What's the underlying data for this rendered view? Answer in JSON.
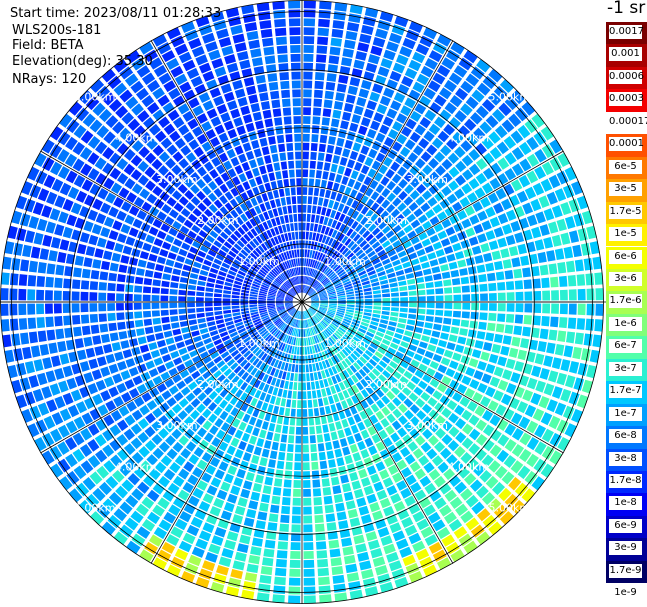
{
  "header": {
    "start_time": "Start time: 2023/08/11 01:28:33",
    "device": "WLS200s-181",
    "field": "Field: BETA",
    "elevation": "Elevation(deg): 35.30",
    "nrays": "NRays: 120"
  },
  "colorbar": {
    "unit": "-1 sr",
    "colors": [
      "#7a0000",
      "#a80000",
      "#cf0000",
      "#f40000",
      "#ffffff",
      "#ff5000",
      "#ff7800",
      "#ffa000",
      "#ffc800",
      "#fff000",
      "#f4ff00",
      "#d0ff2a",
      "#a8ff52",
      "#80ff7a",
      "#52ffaa",
      "#2af0d2",
      "#00c8ff",
      "#00a0ff",
      "#0078ff",
      "#0050ff",
      "#0028ff",
      "#0000f4",
      "#0000c8",
      "#000096",
      "#000064"
    ],
    "labels": [
      "0.0017",
      "0.001",
      "0.0006",
      "0.0003",
      "0.00017",
      "0.0001",
      "6e-5",
      "3e-5",
      "1.7e-5",
      "1e-5",
      "6e-6",
      "3e-6",
      "1.7e-6",
      "1e-6",
      "6e-7",
      "3e-7",
      "1.7e-7",
      "1e-7",
      "6e-8",
      "3e-8",
      "1.7e-8",
      "1e-8",
      "6e-9",
      "3e-9",
      "1.7e-9",
      "1e-9"
    ]
  },
  "chart_data": {
    "type": "heatmap",
    "projection": "polar (PPI scan)",
    "n_rays": 120,
    "range_ring_labels": [
      "1.00km",
      "2.00km",
      "3.00km",
      "4.00km",
      "5.00km"
    ],
    "range_rings_km": [
      1,
      2,
      3,
      4,
      5
    ],
    "max_range_km": 5.2,
    "spoke_step_deg": 30,
    "field": "BETA",
    "unit": "-1 sr",
    "value_summary": "mostly 1e-8 to 1e-7 (blue) toward north-west, 1e-7 to 1e-6 (cyan/green) toward south-east, isolated 1.7e-6 to 1e-5 (yellow/orange) near the far edge to the south and south-east"
  }
}
